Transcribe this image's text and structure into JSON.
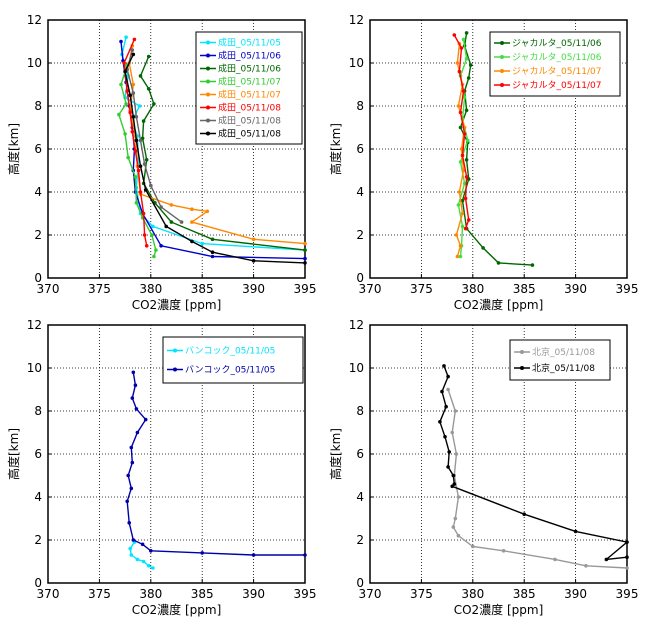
{
  "chart_data": [
    {
      "type": "line",
      "xlabel": "CO2濃度 [ppm]",
      "ylabel": "高度[km]",
      "xlim": [
        370,
        395
      ],
      "ylim": [
        0,
        12
      ],
      "x_ticks": [
        370,
        375,
        380,
        385,
        390,
        395
      ],
      "y_ticks": [
        0,
        2,
        4,
        6,
        8,
        10,
        12
      ],
      "grid": true,
      "legend": "top-right",
      "series": [
        {
          "name": "成田_05/11/05",
          "color": "#00e5ff",
          "x": [
            377.6,
            377.2,
            377.8,
            377.5,
            378.9,
            378.2,
            378.7,
            378.8,
            378.6,
            379.0,
            380.2,
            385.0,
            395.0
          ],
          "y": [
            11.2,
            10.4,
            9.4,
            8.4,
            8.0,
            7.3,
            6.6,
            5.5,
            4.2,
            3.0,
            2.4,
            1.6,
            1.3
          ]
        },
        {
          "name": "成田_05/11/06",
          "color": "#0000cc",
          "x": [
            377.1,
            377.3,
            377.6,
            377.9,
            378.2,
            378.4,
            378.3,
            378.5,
            379.2,
            381.0,
            386.0,
            395.0
          ],
          "y": [
            11.0,
            10.1,
            9.1,
            8.0,
            7.0,
            6.0,
            5.0,
            4.0,
            3.0,
            1.5,
            1.0,
            0.9
          ]
        },
        {
          "name": "成田_05/11/06",
          "color": "#006600",
          "x": [
            379.8,
            379.0,
            379.8,
            380.3,
            379.3,
            379.2,
            379.6,
            379.3,
            380.4,
            382.0,
            386.0,
            395.0
          ],
          "y": [
            10.3,
            9.4,
            8.8,
            8.1,
            7.3,
            6.5,
            5.5,
            4.4,
            3.5,
            2.6,
            1.8,
            1.3
          ]
        },
        {
          "name": "成田_05/11/07",
          "color": "#33cc33",
          "x": [
            377.7,
            377.1,
            377.6,
            376.9,
            377.5,
            377.8,
            378.5,
            378.6,
            379.2,
            380.1,
            380.5,
            380.3
          ],
          "y": [
            9.9,
            9.0,
            8.1,
            7.6,
            6.7,
            5.6,
            4.7,
            3.5,
            2.8,
            2.0,
            1.3,
            1.0
          ]
        },
        {
          "name": "成田_05/11/07",
          "color": "#ff8800",
          "x": [
            378.2,
            377.9,
            378.3,
            378.0,
            378.5,
            378.7,
            379.0,
            382.0,
            384.0,
            385.5,
            384.0,
            390.0,
            395.0
          ],
          "y": [
            10.8,
            10.0,
            9.0,
            7.8,
            6.6,
            5.2,
            3.9,
            3.4,
            3.2,
            3.1,
            2.6,
            1.8,
            1.6
          ]
        },
        {
          "name": "成田_05/11/08",
          "color": "#ff0000",
          "x": [
            378.4,
            377.4,
            377.7,
            378.0,
            378.2,
            378.5,
            378.8,
            379.0,
            379.3,
            379.4,
            379.6
          ],
          "y": [
            11.1,
            10.0,
            8.7,
            7.7,
            6.8,
            5.9,
            5.0,
            4.0,
            3.0,
            2.0,
            1.5
          ]
        },
        {
          "name": "成田_05/11/08",
          "color": "#666666",
          "x": [
            378.2,
            377.7,
            378.3,
            378.6,
            379.0,
            379.4,
            380.0,
            381.0,
            383.0
          ],
          "y": [
            10.6,
            9.7,
            8.6,
            7.5,
            6.4,
            5.3,
            4.3,
            3.3,
            2.6
          ]
        },
        {
          "name": "成田_05/11/08",
          "color": "#000000",
          "x": [
            378.3,
            377.5,
            378.0,
            378.3,
            378.6,
            379.0,
            379.5,
            381.5,
            384.0,
            386.0,
            390.0,
            395.0
          ],
          "y": [
            10.4,
            9.6,
            8.5,
            7.5,
            6.4,
            5.2,
            4.1,
            2.4,
            1.7,
            1.2,
            0.8,
            0.7
          ]
        }
      ]
    },
    {
      "type": "line",
      "xlabel": "CO2濃度 [ppm]",
      "ylabel": "高度[km]",
      "xlim": [
        370,
        395
      ],
      "ylim": [
        0,
        12
      ],
      "x_ticks": [
        370,
        375,
        380,
        385,
        390,
        395
      ],
      "y_ticks": [
        0,
        2,
        4,
        6,
        8,
        10,
        12
      ],
      "grid": true,
      "legend": "top-right",
      "series": [
        {
          "name": "ジャカルタ_05/11/06",
          "color": "#006600",
          "x": [
            379.4,
            379.2,
            379.8,
            379.6,
            379.2,
            379.4,
            378.8,
            379.5,
            379.4,
            379.6,
            379.0,
            379.4,
            381.0,
            382.5,
            385.8
          ],
          "y": [
            11.4,
            10.8,
            9.9,
            9.3,
            8.7,
            7.8,
            7.0,
            6.3,
            5.5,
            4.6,
            3.6,
            2.3,
            1.4,
            0.7,
            0.6
          ]
        },
        {
          "name": "ジャカルタ_05/11/06",
          "color": "#44dd44",
          "x": [
            379.1,
            379.4,
            378.8,
            379.2,
            379.0,
            379.5,
            378.8,
            379.2,
            378.6,
            379.0,
            378.9,
            378.8
          ],
          "y": [
            11.1,
            10.2,
            9.4,
            8.4,
            7.4,
            6.4,
            5.4,
            4.4,
            3.4,
            2.4,
            1.5,
            1.0
          ]
        },
        {
          "name": "ジャカルタ_05/11/07",
          "color": "#ff8800",
          "x": [
            378.7,
            378.5,
            379.0,
            378.6,
            379.2,
            378.9,
            379.1,
            378.7,
            379.0,
            378.4,
            378.8,
            378.5
          ],
          "y": [
            10.9,
            10.0,
            9.0,
            8.0,
            7.0,
            6.0,
            5.0,
            4.0,
            3.0,
            2.0,
            1.5,
            1.0
          ]
        },
        {
          "name": "ジャカルタ_05/11/07",
          "color": "#ff0000",
          "x": [
            378.2,
            378.9,
            378.7,
            379.1,
            378.8,
            379.2,
            379.0,
            379.4,
            379.3,
            379.6,
            379.3
          ],
          "y": [
            11.3,
            10.7,
            9.6,
            8.7,
            7.7,
            6.7,
            5.7,
            4.7,
            3.7,
            2.7,
            2.3
          ]
        }
      ]
    },
    {
      "type": "line",
      "xlabel": "CO2濃度 [ppm]",
      "ylabel": "高度[km]",
      "xlim": [
        370,
        395
      ],
      "ylim": [
        0,
        12
      ],
      "x_ticks": [
        370,
        375,
        380,
        385,
        390,
        395
      ],
      "y_ticks": [
        0,
        2,
        4,
        6,
        8,
        10,
        12
      ],
      "grid": true,
      "legend": "top-right",
      "series": [
        {
          "name": "バンコック_05/11/05",
          "color": "#00e5ff",
          "x": [
            378.4,
            378.0,
            378.1,
            378.7,
            379.3,
            379.8,
            380.2
          ],
          "y": [
            1.9,
            1.6,
            1.3,
            1.1,
            1.0,
            0.8,
            0.7
          ]
        },
        {
          "name": "バンコック_05/11/05",
          "color": "#0000aa",
          "x": [
            378.3,
            378.5,
            378.2,
            378.6,
            379.5,
            378.7,
            378.1,
            378.2,
            377.8,
            378.1,
            377.7,
            377.9,
            378.3,
            379.2,
            380.0,
            385.0,
            390.0,
            395.0
          ],
          "y": [
            9.8,
            9.2,
            8.6,
            8.1,
            7.6,
            7.0,
            6.3,
            5.6,
            5.0,
            4.4,
            3.8,
            2.8,
            2.0,
            1.8,
            1.5,
            1.4,
            1.3,
            1.3
          ]
        }
      ]
    },
    {
      "type": "line",
      "xlabel": "CO2濃度 [ppm]",
      "ylabel": "高度[km]",
      "xlim": [
        370,
        395
      ],
      "ylim": [
        0,
        12
      ],
      "x_ticks": [
        370,
        375,
        380,
        385,
        390,
        395
      ],
      "y_ticks": [
        0,
        2,
        4,
        6,
        8,
        10,
        12
      ],
      "grid": true,
      "legend": "top-right",
      "series": [
        {
          "name": "北京_05/11/08",
          "color": "#999999",
          "x": [
            377.6,
            378.3,
            378.0,
            378.4,
            378.2,
            378.6,
            378.3,
            378.1,
            378.6,
            380.0,
            383.0,
            388.0,
            391.0,
            395.0
          ],
          "y": [
            9.0,
            8.0,
            7.0,
            6.0,
            5.0,
            4.0,
            3.0,
            2.6,
            2.2,
            1.7,
            1.5,
            1.1,
            0.8,
            0.7
          ]
        },
        {
          "name": "北京_05/11/08",
          "color": "#000000",
          "x": [
            377.2,
            377.6,
            377.0,
            377.4,
            376.8,
            377.3,
            377.7,
            377.6,
            378.1,
            378.2,
            378.0,
            385.0,
            390.0,
            395.0,
            393.0,
            395.0
          ],
          "y": [
            10.1,
            9.6,
            8.9,
            8.2,
            7.5,
            6.8,
            6.1,
            5.4,
            5.0,
            4.6,
            4.5,
            3.2,
            2.4,
            1.9,
            1.1,
            1.2
          ]
        }
      ]
    }
  ]
}
